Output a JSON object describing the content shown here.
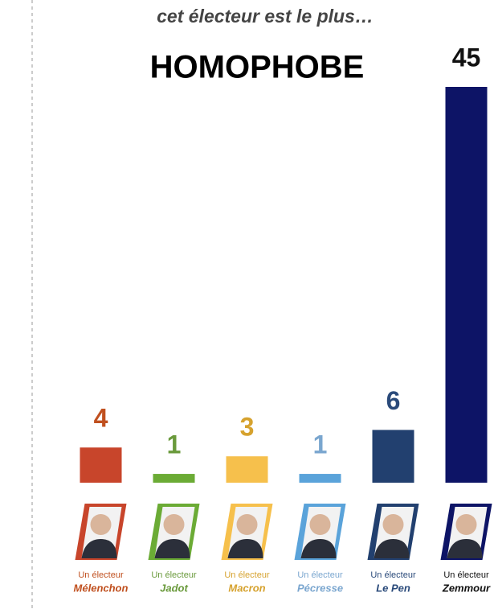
{
  "chart_data": {
    "type": "bar",
    "subtitle": "cet électeur est le plus…",
    "title": "HOMOPHOBE",
    "categories": [
      "Mélenchon",
      "Jadot",
      "Macron",
      "Pécresse",
      "Le Pen",
      "Zemmour"
    ],
    "category_prefixes": [
      "Un électeur",
      "Un électeur",
      "Un électeur",
      "Un électeur",
      "Un électeur",
      "Un électeur"
    ],
    "values": [
      4,
      1,
      3,
      1,
      6,
      45
    ],
    "colors": [
      "#c8452b",
      "#6bab35",
      "#f6c04c",
      "#5aa3da",
      "#22406f",
      "#0d1466"
    ],
    "value_label_colors": [
      "#c0501f",
      "#6a9a3c",
      "#d6a22e",
      "#7aa6cf",
      "#2a4a7a",
      "#111111"
    ]
  }
}
